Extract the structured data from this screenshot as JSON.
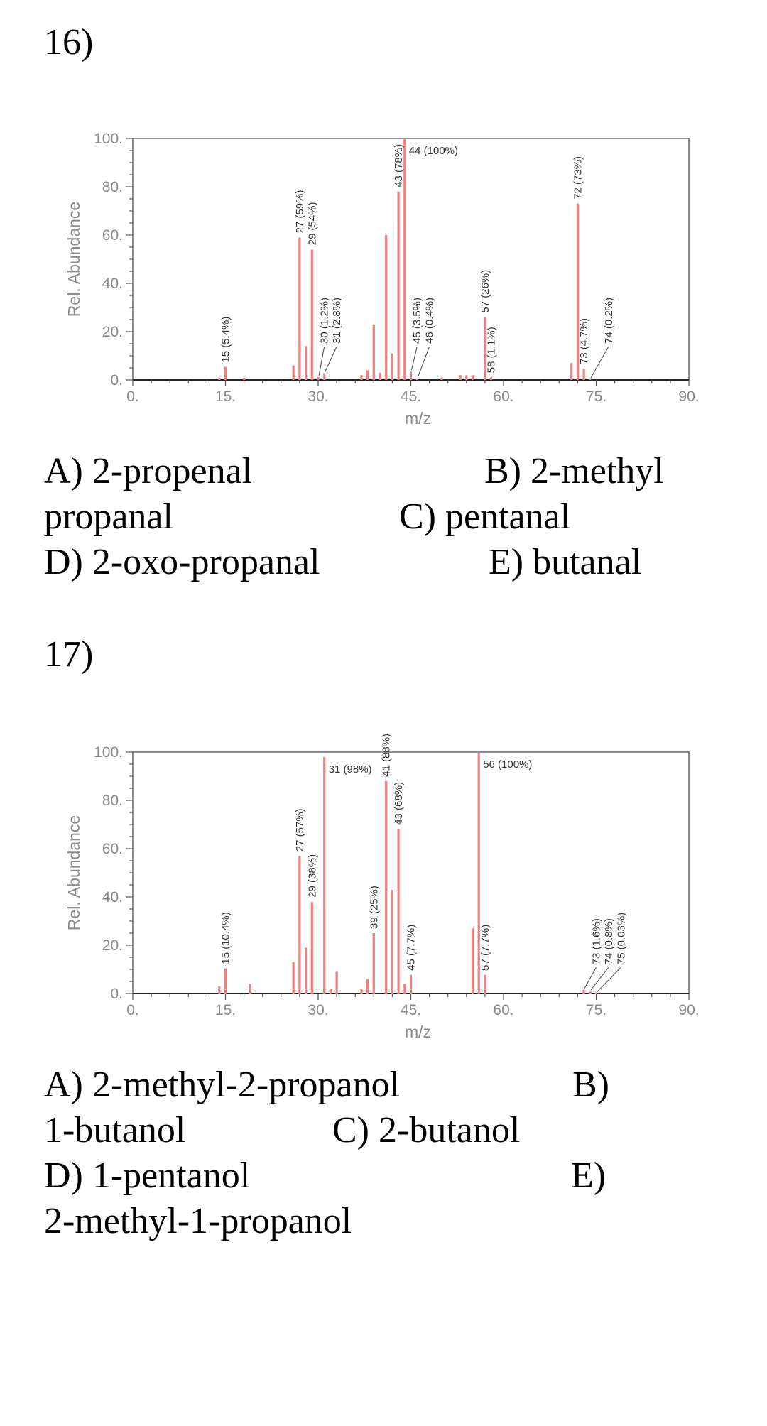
{
  "questions": [
    {
      "number": "16)",
      "answers": {
        "a": "A) 2-propenal",
        "b": "B) 2-methyl",
        "b_cont": "propanal",
        "c": "C) pentanal",
        "d": "D) 2-oxo-propanal",
        "e": "E) butanal"
      }
    },
    {
      "number": "17)",
      "answers": {
        "a": "A) 2-methyl-2-propanol",
        "b": "B)",
        "b_cont": "1-butanol",
        "c": "C) 2-butanol",
        "d": "D) 1-pentanol",
        "e": "E)",
        "e_cont": "2-methyl-1-propanol"
      }
    }
  ],
  "chart_data": [
    {
      "type": "bar",
      "title": "",
      "xlabel": "m/z",
      "ylabel": "Rel. Abundance",
      "xlim": [
        0,
        90
      ],
      "ylim": [
        0,
        100
      ],
      "xticks": [
        "0.",
        "15.",
        "30.",
        "45.",
        "60.",
        "75.",
        "90."
      ],
      "yticks": [
        "0.",
        "20.",
        "40.",
        "60.",
        "80.",
        "100."
      ],
      "bar_color": "#f08080",
      "peaks": [
        {
          "x": 14,
          "y": 1
        },
        {
          "x": 15,
          "y": 5.4
        },
        {
          "x": 18,
          "y": 1
        },
        {
          "x": 26,
          "y": 6
        },
        {
          "x": 27,
          "y": 59
        },
        {
          "x": 28,
          "y": 14
        },
        {
          "x": 29,
          "y": 54
        },
        {
          "x": 30,
          "y": 1.2
        },
        {
          "x": 31,
          "y": 2.8
        },
        {
          "x": 37,
          "y": 2
        },
        {
          "x": 38,
          "y": 4
        },
        {
          "x": 39,
          "y": 23
        },
        {
          "x": 40,
          "y": 3
        },
        {
          "x": 41,
          "y": 60
        },
        {
          "x": 42,
          "y": 11
        },
        {
          "x": 43,
          "y": 78
        },
        {
          "x": 44,
          "y": 100
        },
        {
          "x": 45,
          "y": 3.5
        },
        {
          "x": 46,
          "y": 0.4
        },
        {
          "x": 50,
          "y": 1
        },
        {
          "x": 53,
          "y": 2
        },
        {
          "x": 54,
          "y": 2
        },
        {
          "x": 55,
          "y": 2
        },
        {
          "x": 57,
          "y": 26
        },
        {
          "x": 58,
          "y": 1.1
        },
        {
          "x": 71,
          "y": 7
        },
        {
          "x": 72,
          "y": 73
        },
        {
          "x": 73,
          "y": 4.7
        },
        {
          "x": 74,
          "y": 0.2
        }
      ],
      "annotations": [
        {
          "x": 15,
          "y": 5.4,
          "text": "15 (5.4%)",
          "style": "vertical"
        },
        {
          "x": 27,
          "y": 59,
          "text": "27 (59%)",
          "style": "vertical"
        },
        {
          "x": 29,
          "y": 54,
          "text": "29 (54%)",
          "style": "vertical"
        },
        {
          "x": 30,
          "y": 1.2,
          "text": "30 (1.2%)",
          "style": "leader",
          "lx": 31,
          "ly": 15
        },
        {
          "x": 31,
          "y": 2.8,
          "text": "31 (2.8%)",
          "style": "leader",
          "lx": 33,
          "ly": 15
        },
        {
          "x": 43,
          "y": 78,
          "text": "43 (78%)",
          "style": "vertical"
        },
        {
          "x": 44,
          "y": 100,
          "text": "44 (100%)",
          "style": "horizontal"
        },
        {
          "x": 45,
          "y": 3.5,
          "text": "45 (3.5%)",
          "style": "leader",
          "lx": 46,
          "ly": 15
        },
        {
          "x": 46,
          "y": 0.4,
          "text": "46 (0.4%)",
          "style": "leader",
          "lx": 48,
          "ly": 15
        },
        {
          "x": 57,
          "y": 26,
          "text": "57 (26%)",
          "style": "vertical"
        },
        {
          "x": 58,
          "y": 1.1,
          "text": "58 (1.1%)",
          "style": "vertical"
        },
        {
          "x": 72,
          "y": 73,
          "text": "72 (73%)",
          "style": "vertical"
        },
        {
          "x": 73,
          "y": 4.7,
          "text": "73 (4.7%)",
          "style": "vertical"
        },
        {
          "x": 74,
          "y": 0.2,
          "text": "74 (0.2%)",
          "style": "leader",
          "lx": 77,
          "ly": 15
        }
      ]
    },
    {
      "type": "bar",
      "title": "",
      "xlabel": "m/z",
      "ylabel": "Rel. Abundance",
      "xlim": [
        0,
        90
      ],
      "ylim": [
        0,
        100
      ],
      "xticks": [
        "0.",
        "15.",
        "30.",
        "45.",
        "60.",
        "75.",
        "90."
      ],
      "yticks": [
        "0.",
        "20.",
        "40.",
        "60.",
        "80.",
        "100."
      ],
      "bar_color": "#f08080",
      "peaks": [
        {
          "x": 14,
          "y": 3
        },
        {
          "x": 15,
          "y": 10.4
        },
        {
          "x": 19,
          "y": 4
        },
        {
          "x": 26,
          "y": 13
        },
        {
          "x": 27,
          "y": 57
        },
        {
          "x": 28,
          "y": 19
        },
        {
          "x": 29,
          "y": 38
        },
        {
          "x": 31,
          "y": 98
        },
        {
          "x": 32,
          "y": 2
        },
        {
          "x": 33,
          "y": 9
        },
        {
          "x": 37,
          "y": 2
        },
        {
          "x": 38,
          "y": 6
        },
        {
          "x": 39,
          "y": 25
        },
        {
          "x": 41,
          "y": 88
        },
        {
          "x": 42,
          "y": 43
        },
        {
          "x": 43,
          "y": 68
        },
        {
          "x": 44,
          "y": 4
        },
        {
          "x": 45,
          "y": 7.7
        },
        {
          "x": 55,
          "y": 27
        },
        {
          "x": 56,
          "y": 100
        },
        {
          "x": 57,
          "y": 7.7
        },
        {
          "x": 73,
          "y": 1.6
        },
        {
          "x": 74,
          "y": 0.8
        },
        {
          "x": 75,
          "y": 0.03
        }
      ],
      "annotations": [
        {
          "x": 15,
          "y": 10.4,
          "text": "15 (10.4%)",
          "style": "vertical"
        },
        {
          "x": 27,
          "y": 57,
          "text": "27 (57%)",
          "style": "vertical"
        },
        {
          "x": 29,
          "y": 38,
          "text": "29 (38%)",
          "style": "vertical"
        },
        {
          "x": 31,
          "y": 98,
          "text": "31 (98%)",
          "style": "horizontal"
        },
        {
          "x": 39,
          "y": 25,
          "text": "39 (25%)",
          "style": "vertical"
        },
        {
          "x": 41,
          "y": 88,
          "text": "41 (88%)",
          "style": "vertical"
        },
        {
          "x": 43,
          "y": 68,
          "text": "43 (68%)",
          "style": "vertical"
        },
        {
          "x": 45,
          "y": 7.7,
          "text": "45 (7.7%)",
          "style": "vertical"
        },
        {
          "x": 56,
          "y": 100,
          "text": "56 (100%)",
          "style": "horizontal"
        },
        {
          "x": 57,
          "y": 7.7,
          "text": "57 (7.7%)",
          "style": "vertical"
        },
        {
          "x": 73,
          "y": 1.6,
          "text": "73 (1.6%)",
          "style": "leader",
          "lx": 75,
          "ly": 12
        },
        {
          "x": 74,
          "y": 0.8,
          "text": "74 (0.8%)",
          "style": "leader",
          "lx": 77,
          "ly": 12
        },
        {
          "x": 75,
          "y": 0.03,
          "text": "75 (0.03%)",
          "style": "leader",
          "lx": 79,
          "ly": 12
        }
      ]
    }
  ]
}
